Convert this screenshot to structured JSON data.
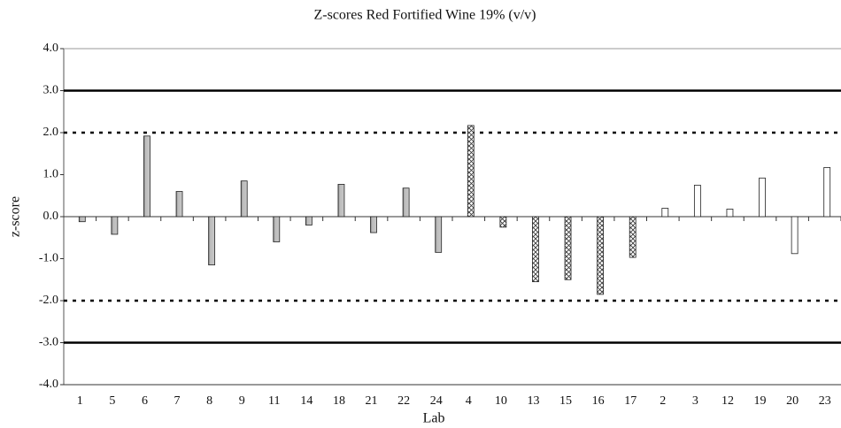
{
  "chart_data": {
    "type": "bar",
    "title": "Z-scores Red Fortified Wine 19% (v/v)",
    "x_label": "Lab",
    "y_label": "z-score",
    "categories": [
      "1",
      "5",
      "6",
      "7",
      "8",
      "9",
      "11",
      "14",
      "18",
      "21",
      "22",
      "24",
      "4",
      "10",
      "13",
      "15",
      "16",
      "17",
      "2",
      "3",
      "12",
      "19",
      "20",
      "23"
    ],
    "values": [
      -0.12,
      -0.42,
      1.92,
      0.6,
      -1.15,
      0.85,
      -0.6,
      -0.2,
      0.77,
      -0.38,
      0.68,
      -0.85,
      2.17,
      -0.25,
      -1.55,
      -1.5,
      -1.85,
      -0.97,
      0.2,
      0.75,
      0.18,
      0.92,
      -0.88,
      1.17
    ],
    "patterns": [
      "gray",
      "gray",
      "gray",
      "gray",
      "gray",
      "gray",
      "gray",
      "gray",
      "gray",
      "gray",
      "gray",
      "gray",
      "crosshatch",
      "crosshatch",
      "crosshatch",
      "crosshatch",
      "crosshatch",
      "crosshatch",
      "white",
      "white",
      "white",
      "white",
      "white",
      "white"
    ],
    "ylim": [
      -4,
      4
    ],
    "yticks": [
      {
        "value": -4,
        "label": "-4.0"
      },
      {
        "value": -3,
        "label": "-3.0"
      },
      {
        "value": -2,
        "label": "-2.0"
      },
      {
        "value": -1,
        "label": "-1.0"
      },
      {
        "value": 0,
        "label": "0.0"
      },
      {
        "value": 1,
        "label": "1.0"
      },
      {
        "value": 2,
        "label": "2.0"
      },
      {
        "value": 3,
        "label": "3.0"
      },
      {
        "value": 4,
        "label": "4.0"
      }
    ],
    "reference_lines": [
      {
        "value": 3,
        "style": "solid"
      },
      {
        "value": 2,
        "style": "dashed"
      },
      {
        "value": -2,
        "style": "dashed"
      },
      {
        "value": -3,
        "style": "solid"
      }
    ]
  }
}
